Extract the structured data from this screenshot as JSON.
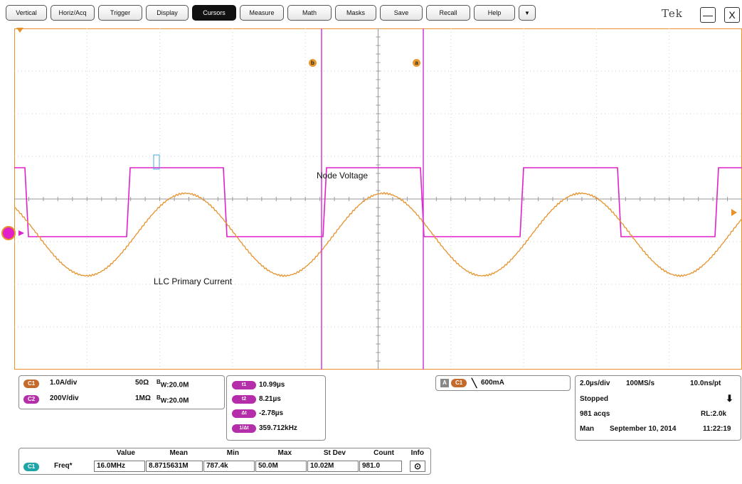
{
  "menu": {
    "items": [
      {
        "label": "Vertical"
      },
      {
        "label": "Horiz/Acq"
      },
      {
        "label": "Trigger"
      },
      {
        "label": "Display"
      },
      {
        "label": "Cursors",
        "active": true
      },
      {
        "label": "Measure"
      },
      {
        "label": "Math"
      },
      {
        "label": "Masks"
      },
      {
        "label": "Save"
      },
      {
        "label": "Recall"
      },
      {
        "label": "Help"
      }
    ],
    "dropdown_glyph": "▼",
    "logo": "Tek",
    "minimize_glyph": "—",
    "close_glyph": "X"
  },
  "waveforms": {
    "node_voltage_label": "Node Voltage",
    "primary_current_label": "LLC Primary Current",
    "node_voltage_color": "#e020c8",
    "primary_current_color": "#e8912a"
  },
  "cursors": {
    "b_label": "b",
    "a_label": "a",
    "color": "#d23cd8"
  },
  "channels": {
    "c1": {
      "badge": "C1",
      "scale": "1.0A/div",
      "impedance": "50Ω",
      "bandwidth": "20.0M",
      "bw_prefix": "B",
      "bw_sub": "W"
    },
    "c2": {
      "badge": "C2",
      "scale": "200V/div",
      "impedance": "1MΩ",
      "bandwidth": "20.0M",
      "bw_prefix": "B",
      "bw_sub": "W"
    }
  },
  "cursor_readout": {
    "t1_badge": "t1",
    "t1": "10.99µs",
    "t2_badge": "t2",
    "t2": "8.21µs",
    "dt_badge": "Δt",
    "dt": "-2.78µs",
    "inv_badge": "1/Δt",
    "inv": "359.712kHz"
  },
  "trigger": {
    "mode_badge": "A",
    "source_badge": "C1",
    "slope_glyph": "╲",
    "level": "600mA"
  },
  "acquisition": {
    "timebase": "2.0µs/div",
    "sample_rate": "100MS/s",
    "resolution": "10.0ns/pt",
    "state": "Stopped",
    "acqs": "981 acqs",
    "record_length": "RL:2.0k",
    "mode": "Man",
    "date": "September 10, 2014",
    "time": "11:22:19",
    "arrow_glyph": "⬇"
  },
  "measurement": {
    "headers": [
      "Value",
      "Mean",
      "Min",
      "Max",
      "St Dev",
      "Count",
      "Info"
    ],
    "source_badge": "C1",
    "name": "Freq*",
    "values": [
      "16.0MHz",
      "8.8715631M",
      "787.4k",
      "50.0M",
      "10.02M",
      "981.0"
    ],
    "info_glyph": "⊙"
  }
}
